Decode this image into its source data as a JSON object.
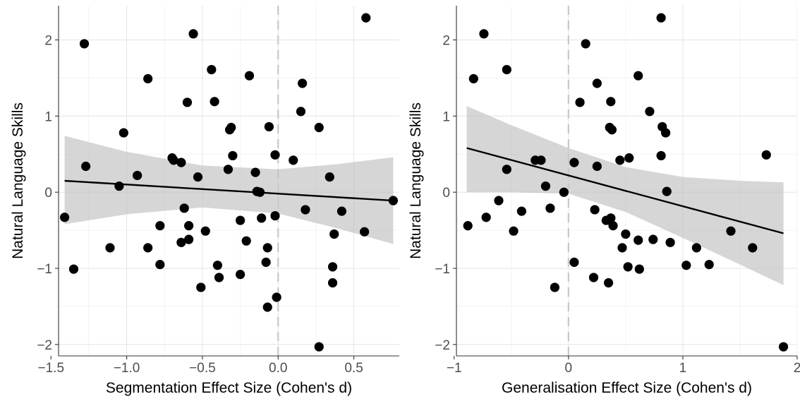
{
  "chart_data": [
    {
      "type": "scatter",
      "xlabel": "Segmentation Effect Size (Cohen's d)",
      "ylabel": "Natural Language Skills",
      "xlim": [
        -1.45,
        0.8
      ],
      "ylim": [
        -2.15,
        2.45
      ],
      "xticks": [
        -1.5,
        -1.0,
        -0.5,
        0.0,
        0.5
      ],
      "xtick_labels": [
        "−1.5",
        "−1.0",
        "−0.5",
        "0.0",
        "0.5"
      ],
      "yticks": [
        -2,
        -1,
        0,
        1,
        2
      ],
      "ytick_labels": [
        "−2",
        "−1",
        "0",
        "1",
        "2"
      ],
      "reference_line_x": 0,
      "grid": true,
      "regression": {
        "x": [
          -1.41,
          0.76
        ],
        "y": [
          0.15,
          -0.11
        ]
      },
      "ribbon": {
        "x": [
          -1.41,
          -1.0,
          -0.5,
          0.0,
          0.4,
          0.76
        ],
        "upper": [
          0.74,
          0.53,
          0.35,
          0.3,
          0.37,
          0.46
        ],
        "lower": [
          -0.42,
          -0.29,
          -0.2,
          -0.28,
          -0.48,
          -0.68
        ]
      },
      "points": [
        {
          "x": -1.41,
          "y": -0.33
        },
        {
          "x": -1.35,
          "y": -1.01
        },
        {
          "x": -1.28,
          "y": 1.95
        },
        {
          "x": -1.27,
          "y": 0.34
        },
        {
          "x": -1.11,
          "y": -0.73
        },
        {
          "x": -1.05,
          "y": 0.08
        },
        {
          "x": -1.02,
          "y": 0.78
        },
        {
          "x": -0.93,
          "y": 0.22
        },
        {
          "x": -0.86,
          "y": -0.73
        },
        {
          "x": -0.86,
          "y": 1.49
        },
        {
          "x": -0.78,
          "y": -0.95
        },
        {
          "x": -0.78,
          "y": -0.44
        },
        {
          "x": -0.7,
          "y": 0.45
        },
        {
          "x": -0.69,
          "y": 0.42
        },
        {
          "x": -0.64,
          "y": 0.39
        },
        {
          "x": -0.64,
          "y": -0.66
        },
        {
          "x": -0.62,
          "y": -0.21
        },
        {
          "x": -0.6,
          "y": 1.18
        },
        {
          "x": -0.59,
          "y": -0.62
        },
        {
          "x": -0.59,
          "y": -0.44
        },
        {
          "x": -0.56,
          "y": 2.08
        },
        {
          "x": -0.53,
          "y": 0.2
        },
        {
          "x": -0.51,
          "y": -1.25
        },
        {
          "x": -0.48,
          "y": -0.51
        },
        {
          "x": -0.44,
          "y": 1.61
        },
        {
          "x": -0.42,
          "y": 1.19
        },
        {
          "x": -0.4,
          "y": -0.96
        },
        {
          "x": -0.39,
          "y": -1.12
        },
        {
          "x": -0.33,
          "y": 0.3
        },
        {
          "x": -0.32,
          "y": 0.82
        },
        {
          "x": -0.31,
          "y": 0.85
        },
        {
          "x": -0.3,
          "y": 0.48
        },
        {
          "x": -0.25,
          "y": -0.37
        },
        {
          "x": -0.25,
          "y": -1.08
        },
        {
          "x": -0.21,
          "y": -0.64
        },
        {
          "x": -0.19,
          "y": 1.53
        },
        {
          "x": -0.15,
          "y": 0.26
        },
        {
          "x": -0.14,
          "y": 0.01
        },
        {
          "x": -0.12,
          "y": 0.0
        },
        {
          "x": -0.11,
          "y": -0.34
        },
        {
          "x": -0.08,
          "y": -0.92
        },
        {
          "x": -0.07,
          "y": -0.73
        },
        {
          "x": -0.07,
          "y": -1.51
        },
        {
          "x": -0.06,
          "y": 0.86
        },
        {
          "x": -0.02,
          "y": 0.49
        },
        {
          "x": -0.02,
          "y": -0.31
        },
        {
          "x": -0.01,
          "y": -1.38
        },
        {
          "x": 0.1,
          "y": 0.42
        },
        {
          "x": 0.15,
          "y": 1.06
        },
        {
          "x": 0.16,
          "y": 1.43
        },
        {
          "x": 0.18,
          "y": -0.23
        },
        {
          "x": 0.27,
          "y": 0.85
        },
        {
          "x": 0.27,
          "y": -2.03
        },
        {
          "x": 0.34,
          "y": 0.2
        },
        {
          "x": 0.36,
          "y": -0.98
        },
        {
          "x": 0.36,
          "y": -1.19
        },
        {
          "x": 0.37,
          "y": -0.55
        },
        {
          "x": 0.42,
          "y": -0.25
        },
        {
          "x": 0.57,
          "y": -0.52
        },
        {
          "x": 0.58,
          "y": 2.29
        },
        {
          "x": 0.76,
          "y": -0.11
        }
      ]
    },
    {
      "type": "scatter",
      "xlabel": "Generalisation Effect Size (Cohen's d)",
      "ylabel": "Natural Language Skills",
      "xlim": [
        -0.98,
        2.0
      ],
      "ylim": [
        -2.15,
        2.45
      ],
      "xticks": [
        -1,
        0,
        1,
        2
      ],
      "xtick_labels": [
        "−1",
        "0",
        "1",
        "2"
      ],
      "yticks": [
        -2,
        -1,
        0,
        1,
        2
      ],
      "ytick_labels": [
        "−2",
        "−1",
        "0",
        "1",
        "2"
      ],
      "reference_line_x": 0,
      "grid": true,
      "regression": {
        "x": [
          -0.89,
          1.88
        ],
        "y": [
          0.58,
          -0.54
        ]
      },
      "ribbon": {
        "x": [
          -0.89,
          -0.5,
          0.0,
          0.5,
          1.0,
          1.5,
          1.88
        ],
        "upper": [
          1.13,
          0.88,
          0.58,
          0.33,
          0.2,
          0.15,
          0.13
        ],
        "lower": [
          0.0,
          0.0,
          -0.02,
          -0.26,
          -0.6,
          -0.95,
          -1.22
        ]
      },
      "points": [
        {
          "x": -0.88,
          "y": -0.44
        },
        {
          "x": -0.83,
          "y": 1.49
        },
        {
          "x": -0.74,
          "y": 2.08
        },
        {
          "x": -0.72,
          "y": -0.33
        },
        {
          "x": -0.61,
          "y": -0.11
        },
        {
          "x": -0.54,
          "y": 0.3
        },
        {
          "x": -0.54,
          "y": 1.61
        },
        {
          "x": -0.48,
          "y": -0.51
        },
        {
          "x": -0.41,
          "y": -0.25
        },
        {
          "x": -0.29,
          "y": 0.42
        },
        {
          "x": -0.24,
          "y": 0.42
        },
        {
          "x": -0.2,
          "y": 0.08
        },
        {
          "x": -0.16,
          "y": -0.21
        },
        {
          "x": -0.12,
          "y": -1.25
        },
        {
          "x": -0.04,
          "y": 0.0
        },
        {
          "x": 0.05,
          "y": -0.92
        },
        {
          "x": 0.05,
          "y": 0.39
        },
        {
          "x": 0.1,
          "y": 1.18
        },
        {
          "x": 0.15,
          "y": 1.95
        },
        {
          "x": 0.22,
          "y": -1.12
        },
        {
          "x": 0.23,
          "y": -0.23
        },
        {
          "x": 0.25,
          "y": 1.43
        },
        {
          "x": 0.25,
          "y": 0.34
        },
        {
          "x": 0.33,
          "y": -0.37
        },
        {
          "x": 0.35,
          "y": -1.19
        },
        {
          "x": 0.36,
          "y": 0.85
        },
        {
          "x": 0.37,
          "y": -0.34
        },
        {
          "x": 0.37,
          "y": 1.19
        },
        {
          "x": 0.38,
          "y": 0.82
        },
        {
          "x": 0.39,
          "y": -0.44
        },
        {
          "x": 0.45,
          "y": 0.42
        },
        {
          "x": 0.47,
          "y": -0.73
        },
        {
          "x": 0.5,
          "y": -0.55
        },
        {
          "x": 0.52,
          "y": -0.98
        },
        {
          "x": 0.53,
          "y": 0.45
        },
        {
          "x": 0.61,
          "y": -0.63
        },
        {
          "x": 0.61,
          "y": 1.53
        },
        {
          "x": 0.62,
          "y": -1.01
        },
        {
          "x": 0.71,
          "y": 1.06
        },
        {
          "x": 0.74,
          "y": -0.62
        },
        {
          "x": 0.81,
          "y": 2.29
        },
        {
          "x": 0.81,
          "y": 0.48
        },
        {
          "x": 0.82,
          "y": 0.86
        },
        {
          "x": 0.85,
          "y": 0.78
        },
        {
          "x": 0.86,
          "y": 0.01
        },
        {
          "x": 0.89,
          "y": -0.66
        },
        {
          "x": 1.03,
          "y": -0.96
        },
        {
          "x": 1.12,
          "y": -0.73
        },
        {
          "x": 1.23,
          "y": -0.95
        },
        {
          "x": 1.42,
          "y": -0.51
        },
        {
          "x": 1.61,
          "y": -0.73
        },
        {
          "x": 1.73,
          "y": 0.49
        },
        {
          "x": 1.88,
          "y": -2.03
        }
      ]
    }
  ]
}
